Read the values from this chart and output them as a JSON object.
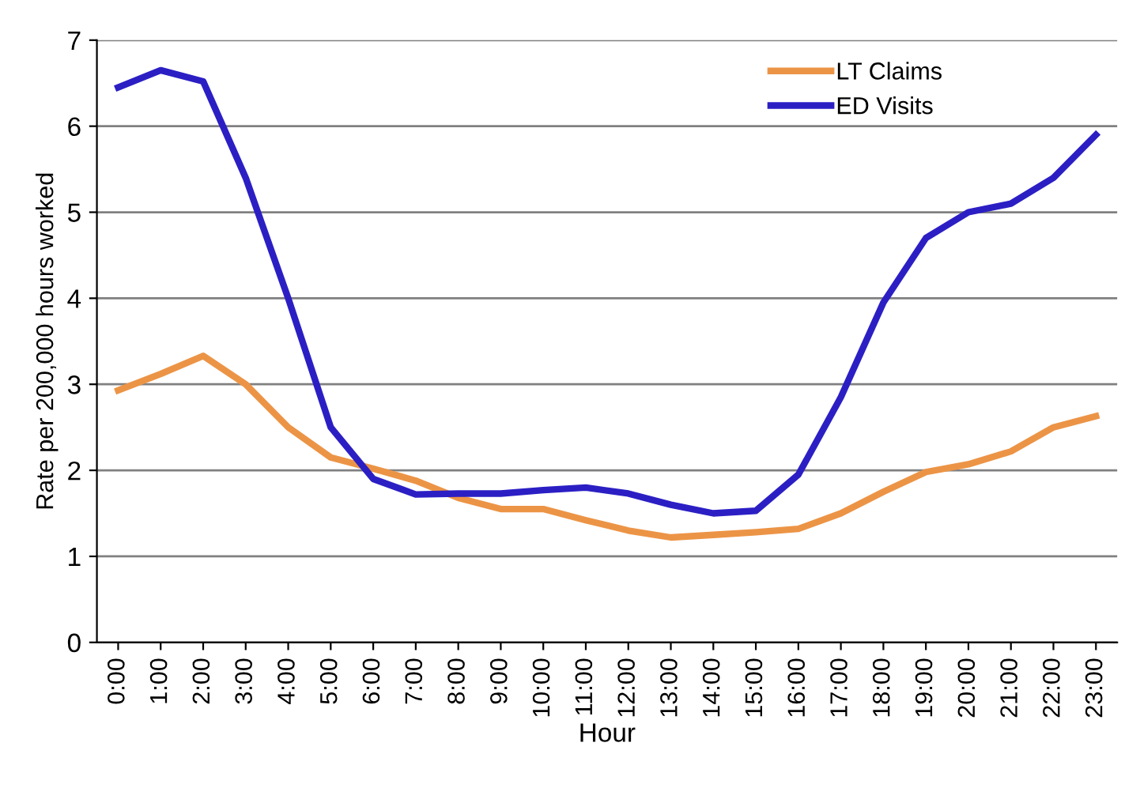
{
  "chart_data": {
    "type": "line",
    "xlabel": "Hour",
    "ylabel": "Rate per 200,000 hours worked",
    "categories": [
      "0:00",
      "1:00",
      "2:00",
      "3:00",
      "4:00",
      "5:00",
      "6:00",
      "7:00",
      "8:00",
      "9:00",
      "10:00",
      "11:00",
      "12:00",
      "13:00",
      "14:00",
      "15:00",
      "16:00",
      "17:00",
      "18:00",
      "19:00",
      "20:00",
      "21:00",
      "22:00",
      "23:00"
    ],
    "series": [
      {
        "name": "LT Claims",
        "color": "#ec9446",
        "values": [
          2.93,
          3.12,
          3.33,
          3.0,
          2.5,
          2.15,
          2.02,
          1.88,
          1.68,
          1.55,
          1.55,
          1.42,
          1.3,
          1.22,
          1.25,
          1.28,
          1.32,
          1.5,
          1.75,
          1.98,
          2.07,
          2.22,
          2.5,
          2.63
        ]
      },
      {
        "name": "ED Visits",
        "color": "#2b1fc4",
        "values": [
          6.45,
          6.65,
          6.52,
          5.4,
          4.0,
          2.5,
          1.9,
          1.72,
          1.73,
          1.73,
          1.77,
          1.8,
          1.73,
          1.6,
          1.5,
          1.53,
          1.95,
          2.85,
          3.95,
          4.7,
          5.0,
          5.1,
          5.4,
          5.9
        ]
      }
    ],
    "ylim": [
      0,
      7
    ],
    "yticks": [
      0,
      1,
      2,
      3,
      4,
      5,
      6,
      7
    ],
    "grid": "y",
    "legend": "top right",
    "marker": "none",
    "line_style": "solid"
  }
}
